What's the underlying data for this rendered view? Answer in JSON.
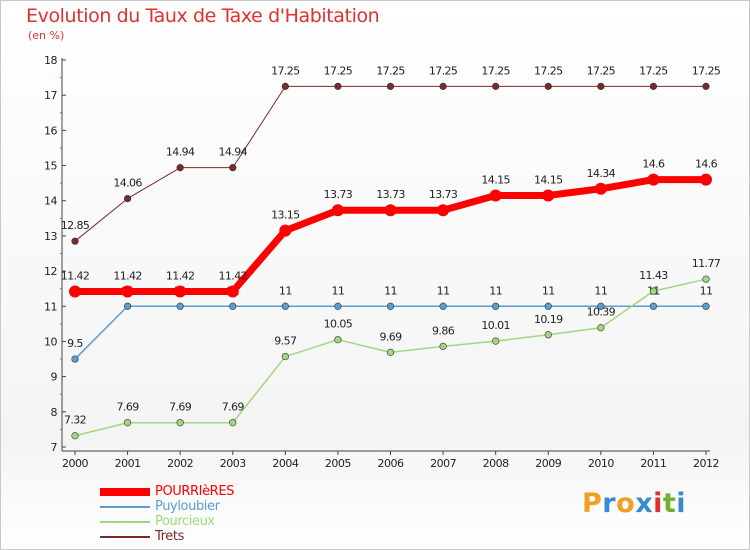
{
  "title": "Evolution du Taux de Taxe d'Habitation",
  "subtitle": "(en %)",
  "logo": {
    "letters": [
      "P",
      "r",
      "o",
      "x",
      "i",
      "t",
      "i"
    ],
    "colors": [
      "#f0a020",
      "#3a8ad0",
      "#f0a020",
      "#3a8ad0",
      "#e03030",
      "#70b030",
      "#3a8ad0"
    ]
  },
  "chart_data": {
    "type": "line",
    "x": [
      "2000",
      "2001",
      "2002",
      "2003",
      "2004",
      "2005",
      "2006",
      "2007",
      "2008",
      "2009",
      "2010",
      "2011",
      "2012"
    ],
    "y_ticks": [
      "7",
      "8",
      "9",
      "10",
      "11",
      "12",
      "13",
      "14",
      "15",
      "16",
      "17",
      "18"
    ],
    "ylim": [
      7,
      18
    ],
    "grid": false,
    "legend_position": "bottom-left",
    "series": [
      {
        "name": "Trets",
        "color": "#7a2a2a",
        "line_width": 1,
        "values": [
          12.85,
          14.06,
          14.94,
          14.94,
          17.25,
          17.25,
          17.25,
          17.25,
          17.25,
          17.25,
          17.25,
          17.25,
          17.25
        ],
        "labels": [
          "12.85",
          "14.06",
          "14.94",
          "14.94",
          "17.25",
          "17.25",
          "17.25",
          "17.25",
          "17.25",
          "17.25",
          "17.25",
          "17.25",
          "17.25"
        ]
      },
      {
        "name": "Puyloubier",
        "color": "#5a9ed0",
        "line_width": 1.5,
        "values": [
          9.5,
          11,
          11,
          11,
          11,
          11,
          11,
          11,
          11,
          11,
          11,
          11,
          11
        ],
        "labels": [
          "9.5",
          "11",
          "11",
          "11",
          "11",
          "11",
          "11",
          "11",
          "11",
          "11",
          "11",
          "11",
          "11"
        ]
      },
      {
        "name": "Pourcieux",
        "color": "#a0d880",
        "line_width": 1.5,
        "values": [
          7.32,
          7.69,
          7.69,
          7.69,
          9.57,
          10.05,
          9.69,
          9.86,
          10.01,
          10.19,
          10.39,
          11.43,
          11.77
        ],
        "labels": [
          "7.32",
          "7.69",
          "7.69",
          "7.69",
          "9.57",
          "10.05",
          "9.69",
          "9.86",
          "10.01",
          "10.19",
          "10.39",
          "11.43",
          "11.77"
        ]
      },
      {
        "name": "POURRIèRES",
        "color": "#ff0000",
        "line_width": 7,
        "values": [
          11.42,
          11.42,
          11.42,
          11.42,
          13.15,
          13.73,
          13.73,
          13.73,
          14.15,
          14.15,
          14.34,
          14.6,
          14.6
        ],
        "labels": [
          "11.42",
          "11.42",
          "11.42",
          "11.42",
          "13.15",
          "13.73",
          "13.73",
          "13.73",
          "14.15",
          "14.15",
          "14.34",
          "14.6",
          "14.6"
        ]
      }
    ],
    "legend_order": [
      "POURRIèRES",
      "Puyloubier",
      "Pourcieux",
      "Trets"
    ]
  }
}
